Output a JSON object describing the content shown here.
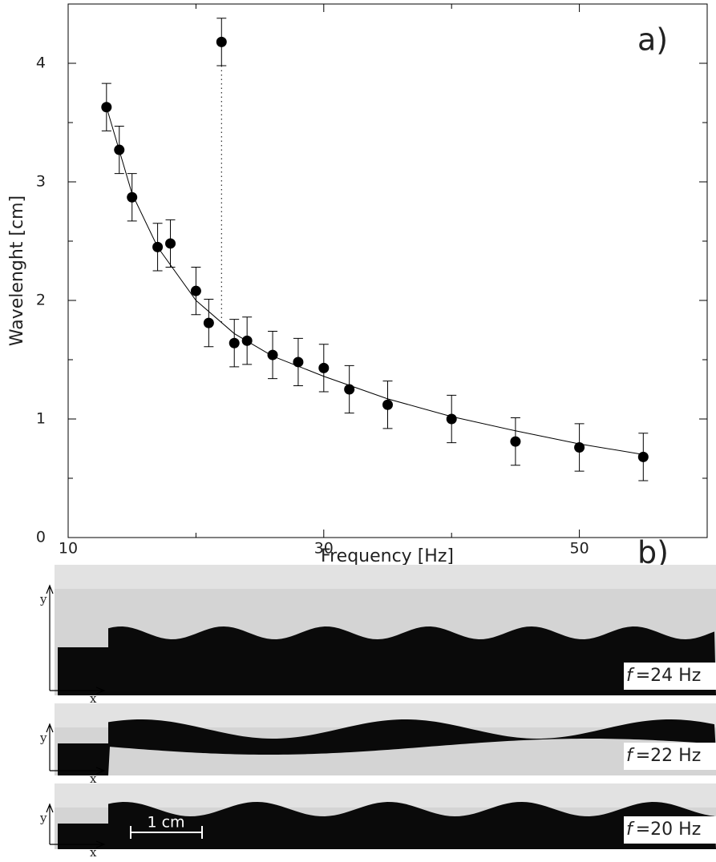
{
  "chart_data": {
    "type": "scatter",
    "xlabel": "Frequency [Hz]",
    "ylabel": "Wavelenght [cm]",
    "annotations": [
      "a)",
      "b)"
    ],
    "xlim": [
      10,
      60
    ],
    "ylim": [
      0,
      4.5
    ],
    "xticks": [
      10,
      30,
      50
    ],
    "yticks": [
      0,
      1,
      2,
      3,
      4
    ],
    "xminor": [
      20,
      40
    ],
    "yminor": [
      0.5,
      1.5,
      2.5,
      3.5
    ],
    "color": "#000000",
    "x": [
      13,
      14,
      15,
      17,
      18,
      20,
      21,
      22,
      23,
      24,
      26,
      28,
      30,
      32,
      35,
      40,
      45,
      50,
      55
    ],
    "values": [
      3.63,
      3.27,
      2.87,
      2.45,
      2.48,
      2.08,
      1.81,
      4.18,
      1.64,
      1.66,
      1.54,
      1.48,
      1.43,
      1.25,
      1.12,
      1.0,
      0.81,
      0.76,
      0.68
    ],
    "errors": [
      0.2,
      0.2,
      0.2,
      0.2,
      0.2,
      0.2,
      0.2,
      0.2,
      0.2,
      0.2,
      0.2,
      0.2,
      0.2,
      0.2,
      0.2,
      0.2,
      0.2,
      0.2,
      0.2
    ],
    "fit": {
      "x": [
        13,
        15,
        17,
        20,
        23,
        26,
        30,
        35,
        40,
        45,
        50,
        55
      ],
      "values": [
        3.63,
        2.9,
        2.45,
        2.0,
        1.72,
        1.53,
        1.36,
        1.17,
        1.02,
        0.9,
        0.79,
        0.7
      ]
    }
  },
  "panels": {
    "scale_bar": "1 cm",
    "axis_y": "y",
    "axis_x": "x",
    "items": [
      {
        "symbol": "f",
        "label": "=24 Hz"
      },
      {
        "symbol": "f",
        "label": "=22 Hz"
      },
      {
        "symbol": "f",
        "label": "=20 Hz"
      }
    ]
  }
}
